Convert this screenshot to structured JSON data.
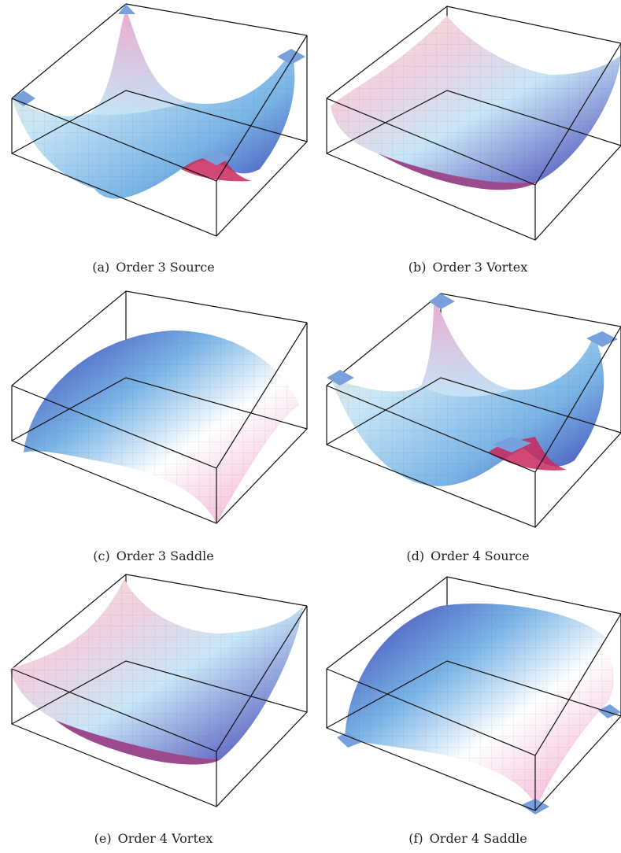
{
  "figure": {
    "panels": [
      {
        "id": "a",
        "tag": "(a)",
        "label": "Order 3 Source"
      },
      {
        "id": "b",
        "tag": "(b)",
        "label": "Order 3 Vortex"
      },
      {
        "id": "c",
        "tag": "(c)",
        "label": "Order 3 Saddle"
      },
      {
        "id": "d",
        "tag": "(d)",
        "label": "Order 4 Source"
      },
      {
        "id": "e",
        "tag": "(e)",
        "label": "Order 4 Vortex"
      },
      {
        "id": "f",
        "tag": "(f)",
        "label": "Order 4 Saddle"
      }
    ],
    "colors": {
      "frame": "#111111",
      "blue_light": "#c8e6f7",
      "blue_mid": "#78b4e6",
      "blue_deep": "#3c3cb4",
      "pink": "#f0a0c8",
      "magenta": "#c8285a",
      "cream": "#f5e6c8",
      "white": "#ffffff"
    }
  }
}
